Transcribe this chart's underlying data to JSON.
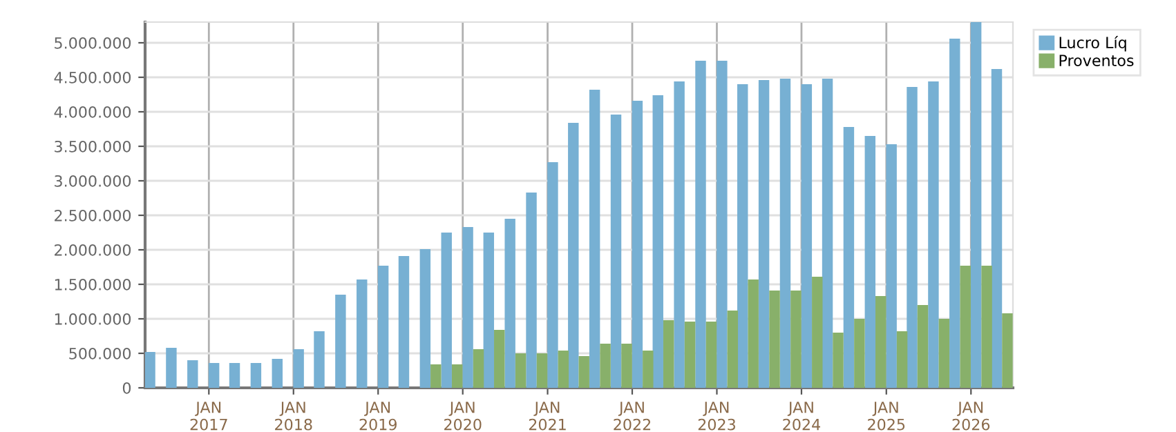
{
  "chart_data": {
    "type": "bar",
    "x": [
      "2016-05-15",
      "2016-08-15",
      "2016-11-15",
      "2017-02-15",
      "2017-05-15",
      "2017-08-15",
      "2017-11-15",
      "2018-02-15",
      "2018-05-15",
      "2018-08-15",
      "2018-11-15",
      "2019-02-15",
      "2019-05-15",
      "2019-08-15",
      "2019-11-15",
      "2020-02-15",
      "2020-05-15",
      "2020-08-15",
      "2020-11-15",
      "2021-02-15",
      "2021-05-15",
      "2021-08-15",
      "2021-11-15",
      "2022-02-15",
      "2022-05-15",
      "2022-08-15",
      "2022-11-15",
      "2023-02-15",
      "2023-05-15",
      "2023-08-15",
      "2023-11-15",
      "2024-02-15",
      "2024-05-15",
      "2024-08-15",
      "2024-11-15",
      "2025-02-15",
      "2025-05-15",
      "2025-08-15",
      "2025-11-15",
      "2026-02-15",
      "2026-05-15"
    ],
    "series": [
      {
        "name": "Lucro Líq",
        "color": "#77b0d3",
        "values": [
          520000,
          580000,
          400000,
          360000,
          360000,
          360000,
          420000,
          560000,
          820000,
          1350000,
          1570000,
          1770000,
          1910000,
          2010000,
          2250000,
          2330000,
          2250000,
          2450000,
          2830000,
          3270000,
          3840000,
          4320000,
          3960000,
          4160000,
          4240000,
          4440000,
          4740000,
          4740000,
          4400000,
          4460000,
          4480000,
          4400000,
          4480000,
          3780000,
          3650000,
          3530000,
          4360000,
          4440000,
          5060000,
          5300000,
          4620000
        ]
      },
      {
        "name": "Proventos",
        "color": "#88b06a",
        "values": [
          null,
          null,
          null,
          null,
          null,
          null,
          null,
          null,
          null,
          null,
          null,
          null,
          null,
          340000,
          340000,
          560000,
          840000,
          500000,
          500000,
          540000,
          460000,
          640000,
          640000,
          540000,
          980000,
          960000,
          960000,
          1120000,
          1570000,
          1410000,
          1410000,
          1610000,
          800000,
          1000000,
          1330000,
          820000,
          1200000,
          1000000,
          1770000,
          1770000,
          1080000
        ]
      }
    ],
    "xlim": [
      "2016-04-01",
      "2026-07-01"
    ],
    "xticks": [
      {
        "value": "2017-01-01",
        "label": "JAN\n2017"
      },
      {
        "value": "2018-01-01",
        "label": "JAN\n2018"
      },
      {
        "value": "2019-01-01",
        "label": "JAN\n2019"
      },
      {
        "value": "2020-01-01",
        "label": "JAN\n2020"
      },
      {
        "value": "2021-01-01",
        "label": "JAN\n2021"
      },
      {
        "value": "2022-01-01",
        "label": "JAN\n2022"
      },
      {
        "value": "2023-01-01",
        "label": "JAN\n2023"
      },
      {
        "value": "2024-01-01",
        "label": "JAN\n2024"
      },
      {
        "value": "2025-01-01",
        "label": "JAN\n2025"
      },
      {
        "value": "2026-01-01",
        "label": "JAN\n2026"
      }
    ],
    "ylim": [
      0,
      5300000
    ],
    "yticks": [
      {
        "value": 0,
        "label": "0"
      },
      {
        "value": 500000,
        "label": "500.000"
      },
      {
        "value": 1000000,
        "label": "1.000.000"
      },
      {
        "value": 1500000,
        "label": "1.500.000"
      },
      {
        "value": 2000000,
        "label": "2.000.000"
      },
      {
        "value": 2500000,
        "label": "2.500.000"
      },
      {
        "value": 3000000,
        "label": "3.000.000"
      },
      {
        "value": 3500000,
        "label": "3.500.000"
      },
      {
        "value": 4000000,
        "label": "4.000.000"
      },
      {
        "value": 4500000,
        "label": "4.500.000"
      },
      {
        "value": 5000000,
        "label": "5.000.000"
      }
    ],
    "grid": true,
    "legend": "top right"
  }
}
